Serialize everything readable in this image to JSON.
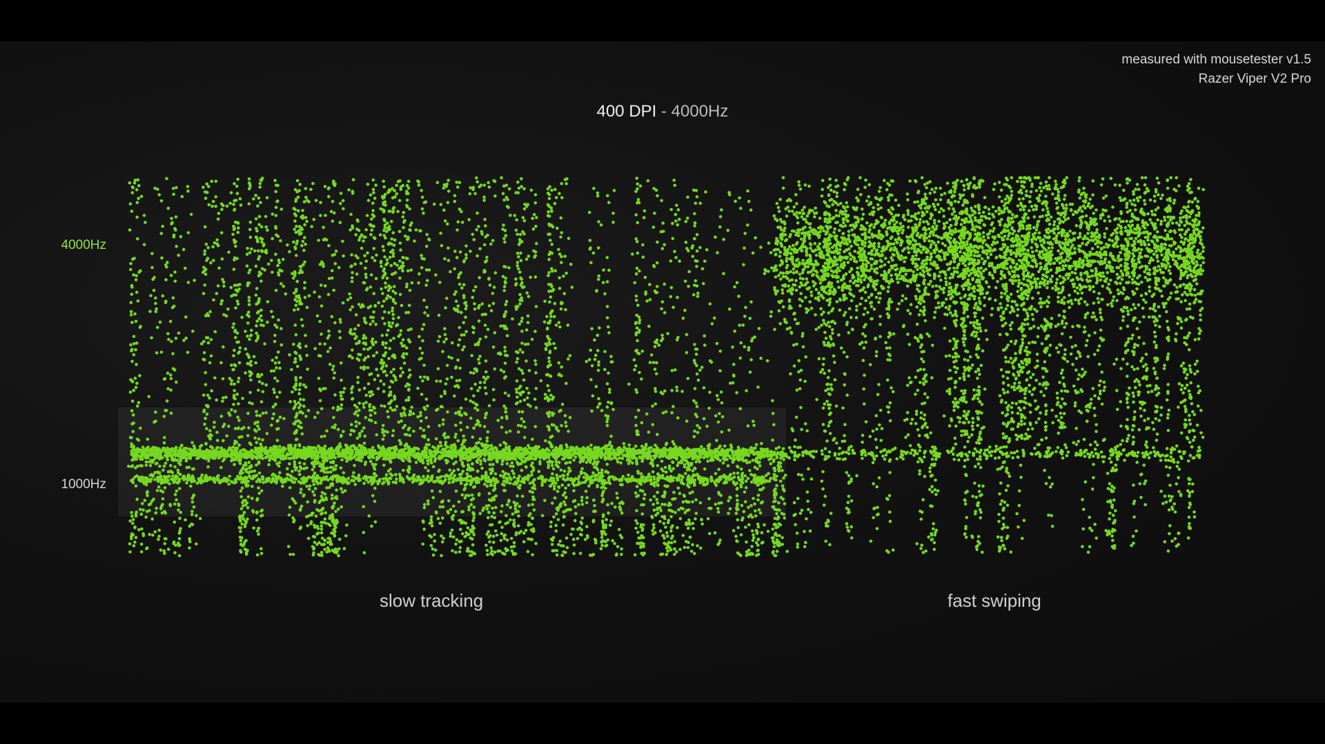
{
  "header": {
    "credit_line1": "measured with mousetester v1.5",
    "credit_line2": "Razer Viper V2 Pro"
  },
  "chart_data": {
    "type": "scatter",
    "title_main": "400 DPI",
    "title_sep": " - ",
    "title_rate": "4000Hz",
    "xlabel": "",
    "ylabel": "",
    "xlim": [
      0,
      100
    ],
    "ylim": [
      90,
      4850
    ],
    "grid": false,
    "legend": "none",
    "y_ticks": [
      {
        "value": 4000,
        "label": "4000Hz",
        "color": "#8fe63a"
      },
      {
        "value": 1000,
        "label": "1000Hz",
        "color": "#d6d6d6"
      }
    ],
    "highlight_band": {
      "y_range": [
        580,
        1500
      ],
      "x_range": [
        -1,
        61
      ]
    },
    "point_color": "#77d81f",
    "regions": [
      {
        "label": "slow tracking",
        "x_center": 28
      },
      {
        "label": "fast swiping",
        "x_center": 80.5
      }
    ],
    "clusters": [
      {
        "region": "slow tracking",
        "kind": "band",
        "x": [
          0,
          54
        ],
        "y_center": 1390,
        "y_spread": 45,
        "count": 2200
      },
      {
        "region": "slow tracking",
        "kind": "band",
        "x": [
          54,
          61
        ],
        "y_center": 1390,
        "y_spread": 45,
        "count": 260
      },
      {
        "region": "slow tracking",
        "kind": "band",
        "x": [
          0,
          60
        ],
        "y_center": 1065,
        "y_spread": 30,
        "count": 800
      },
      {
        "region": "slow tracking",
        "kind": "streaks",
        "x": [
          0,
          53
        ],
        "y": [
          1150,
          4850
        ],
        "columns": 95,
        "count": 2600
      },
      {
        "region": "slow tracking",
        "kind": "streaks",
        "x": [
          0,
          61
        ],
        "y": [
          110,
          1300
        ],
        "columns": 115,
        "count": 1500
      },
      {
        "region": "slow tracking",
        "kind": "scatter",
        "x": [
          53,
          60
        ],
        "y": [
          1500,
          4700
        ],
        "count": 110
      },
      {
        "region": "fast swiping",
        "kind": "band",
        "x": [
          60,
          100
        ],
        "y_center": 3900,
        "y_spread": 380,
        "count": 3000
      },
      {
        "region": "fast swiping",
        "kind": "streaks",
        "x": [
          60,
          100
        ],
        "y": [
          1500,
          4850
        ],
        "columns": 60,
        "count": 2100
      },
      {
        "region": "fast swiping",
        "kind": "streaks",
        "x": [
          61,
          100
        ],
        "y": [
          150,
          1500
        ],
        "columns": 40,
        "count": 420
      },
      {
        "region": "fast swiping",
        "kind": "band",
        "x": [
          61,
          100
        ],
        "y_center": 1390,
        "y_spread": 40,
        "count": 300
      }
    ]
  }
}
